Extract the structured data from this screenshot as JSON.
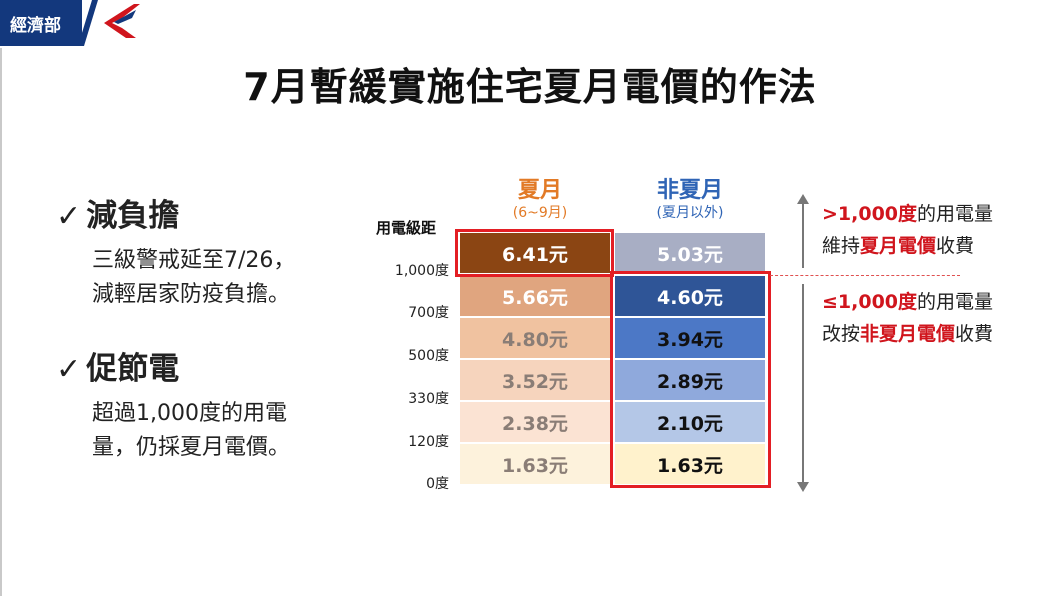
{
  "header": {
    "logo_text": "經濟部"
  },
  "title": "7月暫緩實施住宅夏月電價的作法",
  "points": [
    {
      "check": "✓",
      "heading": "減負擔",
      "lines": [
        "三級警戒延至7/26，",
        "減輕居家防疫負擔。"
      ]
    },
    {
      "check": "✓",
      "heading": "促節電",
      "lines": [
        "超過1,000度的用電",
        "量，仍採夏月電價。"
      ]
    }
  ],
  "table": {
    "range_label": "用電級距",
    "summer_header": {
      "main": "夏月",
      "sub": "(6~9月)"
    },
    "nonsummer_header": {
      "main": "非夏月",
      "sub": "(夏月以外)"
    },
    "ticks": [
      "1,000度",
      "700度",
      "500度",
      "330度",
      "120度",
      "0度"
    ],
    "summer": [
      "6.41元",
      "5.66元",
      "4.80元",
      "3.52元",
      "2.38元",
      "1.63元"
    ],
    "nonsummer": [
      "5.03元",
      "4.60元",
      "3.94元",
      "2.89元",
      "2.10元",
      "1.63元"
    ],
    "colors": {
      "summer_bg": [
        "#8b4513",
        "#e0a57f",
        "#f0c2a0",
        "#f6d4bd",
        "#fbe3d3",
        "#fdf2dc"
      ],
      "summer_fg": [
        "#ffffff",
        "#ffffff",
        "#8a7d76",
        "#8a7d76",
        "#8a7d76",
        "#8a7d76"
      ],
      "nonsummer_bg": [
        "#a8aec4",
        "#2f5597",
        "#4c78c6",
        "#8fa9dc",
        "#b4c7e7",
        "#fff2cc"
      ],
      "nonsummer_fg": [
        "#ffffff",
        "#ffffff",
        "#111111",
        "#111111",
        "#111111",
        "#111111"
      ]
    }
  },
  "notes": {
    "upper": {
      "red": ">1,000度",
      "rest1": "的用電量",
      "line2_pre": "維持",
      "line2_red": "夏月電價",
      "line2_post": "收費"
    },
    "lower": {
      "red": "≤1,000度",
      "rest1": "的用電量",
      "line2_pre": "改按",
      "line2_red": "非夏月電價",
      "line2_post": "收費"
    }
  },
  "accent_colors": {
    "brand_blue": "#13387d",
    "highlight_red": "#e31e24",
    "summer_orange": "#e27a26",
    "nonsummer_blue": "#2f64b5"
  }
}
